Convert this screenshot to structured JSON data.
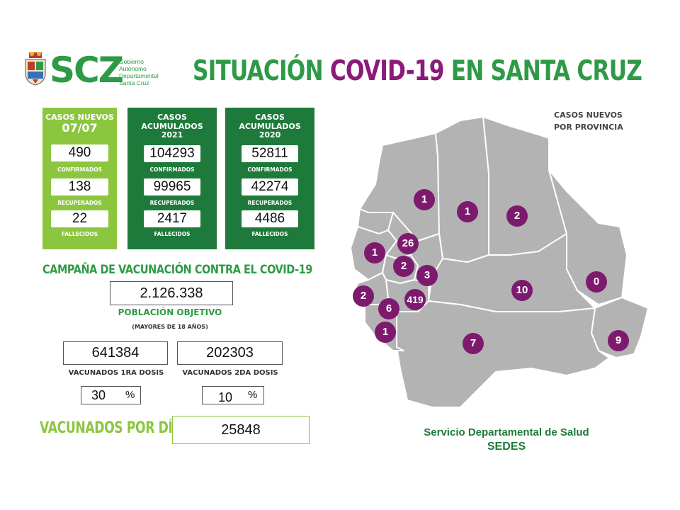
{
  "header": {
    "logo_text": "SCZ",
    "gov_lines": [
      "Gobierno",
      "Autónomo",
      "Departamental",
      "Santa Cruz"
    ],
    "title_part1": "SITUACIÓN ",
    "title_part2": "COVID-19",
    "title_part3": " EN SANTA CRUZ"
  },
  "casos_nuevos": {
    "title": "CASOS NUEVOS",
    "date": "07/07",
    "confirmados": "490",
    "confirmados_label": "CONFIRMADOS",
    "recuperados": "138",
    "recuperados_label": "RECUPERADOS",
    "fallecidos": "22",
    "fallecidos_label": "FALLECIDOS"
  },
  "acumulados_2021": {
    "title": "CASOS ACUMULADOS",
    "year": "2021",
    "confirmados": "104293",
    "confirmados_label": "CONFIRMADOS",
    "recuperados": "99965",
    "recuperados_label": "RECUPERADOS",
    "fallecidos": "2417",
    "fallecidos_label": "FALLECIDOS"
  },
  "acumulados_2020": {
    "title": "CASOS ACUMULADOS",
    "year": "2020",
    "confirmados": "52811",
    "confirmados_label": "CONFIRMADOS",
    "recuperados": "42274",
    "recuperados_label": "RECUPERADOS",
    "fallecidos": "4486",
    "fallecidos_label": "FALLECIDOS"
  },
  "vacunacion": {
    "title": "CAMPAÑA DE VACUNACIÓN CONTRA EL COVID-19",
    "poblacion_objetivo": "2.126.338",
    "poblacion_label": "POBLACIÓN OBJETIVO",
    "poblacion_sublabel": "(MAYORES DE 18 AÑOS)",
    "dosis1": "641384",
    "dosis1_label": "VACUNADOS 1RA DOSIS",
    "dosis2": "202303",
    "dosis2_label": "VACUNADOS 2DA DOSIS",
    "pct1": "30",
    "pct2": "10",
    "pct_symbol": "%",
    "por_dia_label": "VACUNADOS POR DÍA",
    "por_dia": "25848"
  },
  "map": {
    "title_line1": "CASOS NUEVOS",
    "title_line2": "POR PROVINCIA",
    "provinces": [
      "1",
      "1",
      "2",
      "26",
      "1",
      "2",
      "3",
      "2",
      "419",
      "6",
      "10",
      "0",
      "1",
      "7",
      "9"
    ]
  },
  "footer": {
    "line1": "Servicio Departamental de Salud",
    "line2": "SEDES"
  },
  "colors": {
    "green": "#2e9a46",
    "light_green": "#8cc63f",
    "dark_green": "#1e7a3a",
    "purple": "#7d1a6e",
    "map_gray": "#b3b3b3"
  }
}
